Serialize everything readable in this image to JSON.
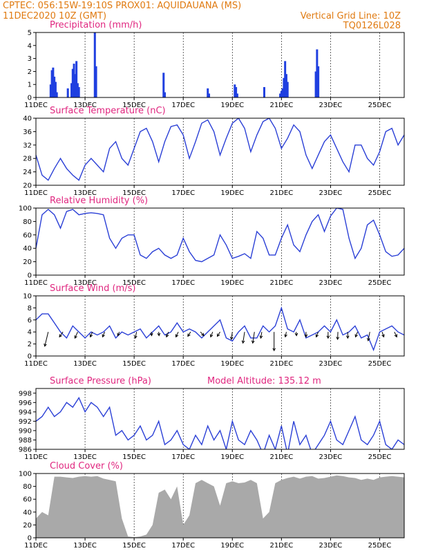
{
  "header": {
    "line1": "CPTEC:   056:15W-19:10S   PROX01: AQUIDAUANA (MS)",
    "line2_left": "11DEC2020 10Z (GMT)",
    "line2_right": "Vertical Grid Line: 10Z",
    "line3_right": "TQ0126L028"
  },
  "colors": {
    "header": "#e07a10",
    "panel_title": "#e0267f",
    "line": "#2a3fd6",
    "bar": "#1f3fe0",
    "cloud": "#a9a9a9",
    "arrow": "#000000"
  },
  "x_axis": {
    "ticks": [
      "11DEC",
      "13DEC",
      "15DEC",
      "17DEC",
      "19DEC",
      "21DEC",
      "23DEC",
      "25DEC"
    ],
    "range_days": [
      0,
      15
    ],
    "tick_every_days": 2
  },
  "chart_data": [
    {
      "id": "precip",
      "type": "bar",
      "title": "Precipitation (mm/h)",
      "ylim": [
        0,
        5
      ],
      "yticks": [
        0,
        1,
        2,
        3,
        4,
        5
      ],
      "bars": [
        [
          0.6,
          1.0
        ],
        [
          0.65,
          2.1
        ],
        [
          0.7,
          2.3
        ],
        [
          0.75,
          1.6
        ],
        [
          0.8,
          1.2
        ],
        [
          0.85,
          0.4
        ],
        [
          1.3,
          0.7
        ],
        [
          1.45,
          1.1
        ],
        [
          1.5,
          2.2
        ],
        [
          1.55,
          2.6
        ],
        [
          1.6,
          1.8
        ],
        [
          1.65,
          2.8
        ],
        [
          1.7,
          1.1
        ],
        [
          1.75,
          0.8
        ],
        [
          2.4,
          5.0
        ],
        [
          2.45,
          2.4
        ],
        [
          5.2,
          1.9
        ],
        [
          5.25,
          0.4
        ],
        [
          7.0,
          0.7
        ],
        [
          7.05,
          0.3
        ],
        [
          8.1,
          1.0
        ],
        [
          8.15,
          0.8
        ],
        [
          8.2,
          0.3
        ],
        [
          9.3,
          0.8
        ],
        [
          9.95,
          0.3
        ],
        [
          10.0,
          0.5
        ],
        [
          10.05,
          0.7
        ],
        [
          10.1,
          1.5
        ],
        [
          10.15,
          2.8
        ],
        [
          10.2,
          1.8
        ],
        [
          10.25,
          1.2
        ],
        [
          11.4,
          2.0
        ],
        [
          11.45,
          3.7
        ],
        [
          11.5,
          2.4
        ]
      ]
    },
    {
      "id": "temp",
      "type": "line",
      "title": "Surface Temperature (nC)",
      "ylim": [
        20,
        40
      ],
      "yticks": [
        20,
        24,
        28,
        32,
        36,
        40
      ],
      "x": [
        0,
        0.25,
        0.5,
        0.75,
        1,
        1.25,
        1.5,
        1.75,
        2,
        2.25,
        2.5,
        2.75,
        3,
        3.25,
        3.5,
        3.75,
        4,
        4.25,
        4.5,
        4.75,
        5,
        5.25,
        5.5,
        5.75,
        6,
        6.25,
        6.5,
        6.75,
        7,
        7.25,
        7.5,
        7.75,
        8,
        8.25,
        8.5,
        8.75,
        9,
        9.25,
        9.5,
        9.75,
        10,
        10.25,
        10.5,
        10.75,
        11,
        11.25,
        11.5,
        11.75,
        12,
        12.25,
        12.5,
        12.75,
        13,
        13.25,
        13.5,
        13.75,
        14,
        14.25,
        14.5,
        14.75,
        15
      ],
      "values": [
        29,
        23,
        21.5,
        25,
        28,
        25,
        23,
        21.5,
        26,
        28,
        26,
        24,
        31,
        33,
        28,
        26,
        31,
        36,
        37,
        33,
        27,
        33,
        37.5,
        38,
        35,
        28,
        33,
        38.5,
        39.5,
        36,
        29,
        34,
        38.5,
        40,
        37,
        30,
        35,
        39,
        40,
        37,
        31,
        34,
        38,
        36,
        29,
        25,
        29,
        33,
        35,
        31,
        27,
        24,
        32,
        32,
        28,
        26,
        30,
        36,
        37,
        32,
        35
      ]
    },
    {
      "id": "rh",
      "type": "line",
      "title": "Relative Humidity (%)",
      "ylim": [
        0,
        100
      ],
      "yticks": [
        0,
        20,
        40,
        60,
        80,
        100
      ],
      "x": [
        0,
        0.25,
        0.5,
        0.75,
        1,
        1.25,
        1.5,
        1.75,
        2,
        2.25,
        2.5,
        2.75,
        3,
        3.25,
        3.5,
        3.75,
        4,
        4.25,
        4.5,
        4.75,
        5,
        5.25,
        5.5,
        5.75,
        6,
        6.25,
        6.5,
        6.75,
        7,
        7.25,
        7.5,
        7.75,
        8,
        8.25,
        8.5,
        8.75,
        9,
        9.25,
        9.5,
        9.75,
        10,
        10.25,
        10.5,
        10.75,
        11,
        11.25,
        11.5,
        11.75,
        12,
        12.25,
        12.5,
        12.75,
        13,
        13.25,
        13.5,
        13.75,
        14,
        14.25,
        14.5,
        14.75,
        15
      ],
      "values": [
        40,
        90,
        98,
        90,
        70,
        95,
        98,
        90,
        92,
        93,
        92,
        90,
        55,
        40,
        55,
        60,
        60,
        30,
        25,
        35,
        40,
        30,
        25,
        30,
        55,
        35,
        22,
        20,
        25,
        30,
        60,
        45,
        25,
        28,
        32,
        25,
        65,
        55,
        30,
        30,
        55,
        75,
        45,
        35,
        60,
        80,
        90,
        65,
        88,
        100,
        98,
        55,
        25,
        40,
        75,
        82,
        60,
        35,
        28,
        30,
        40
      ]
    },
    {
      "id": "wind",
      "type": "line",
      "title": "Surface Wind (m/s)",
      "ylim": [
        0,
        10
      ],
      "yticks": [
        0,
        2,
        4,
        6,
        8,
        10
      ],
      "x": [
        0,
        0.25,
        0.5,
        0.75,
        1,
        1.25,
        1.5,
        1.75,
        2,
        2.25,
        2.5,
        2.75,
        3,
        3.25,
        3.5,
        3.75,
        4,
        4.25,
        4.5,
        4.75,
        5,
        5.25,
        5.5,
        5.75,
        6,
        6.25,
        6.5,
        6.75,
        7,
        7.25,
        7.5,
        7.75,
        8,
        8.25,
        8.5,
        8.75,
        9,
        9.25,
        9.5,
        9.75,
        10,
        10.25,
        10.5,
        10.75,
        11,
        11.25,
        11.5,
        11.75,
        12,
        12.25,
        12.5,
        12.75,
        13,
        13.25,
        13.5,
        13.75,
        14,
        14.25,
        14.5,
        14.75,
        15
      ],
      "values": [
        6,
        7,
        7,
        5.5,
        4,
        3,
        5,
        4,
        3,
        4,
        3.5,
        4,
        5,
        3,
        4,
        3.5,
        4,
        4.5,
        3,
        4,
        5,
        3.5,
        4,
        5.5,
        4,
        4.5,
        4,
        3,
        4,
        5,
        6,
        3,
        2.5,
        4,
        5,
        3,
        3,
        5,
        4,
        5,
        8,
        4.5,
        4,
        6,
        3,
        3.5,
        4,
        5,
        4,
        6,
        3.5,
        4,
        5,
        3,
        3.5,
        1,
        4,
        4.5,
        5,
        4,
        3.5
      ],
      "arrows": [
        [
          0.5,
          -1,
          -2.3
        ],
        [
          1.1,
          -1,
          -0.8
        ],
        [
          1.7,
          -0.8,
          -1.0
        ],
        [
          2.3,
          -0.6,
          -0.8
        ],
        [
          2.8,
          -0.6,
          -0.8
        ],
        [
          3.4,
          -0.5,
          -0.6
        ],
        [
          4.1,
          -0.4,
          -1.0
        ],
        [
          4.7,
          0.1,
          -0.6
        ],
        [
          5.0,
          0.1,
          -0.6
        ],
        [
          5.4,
          -0.6,
          -0.8
        ],
        [
          5.8,
          -0.7,
          -0.8
        ],
        [
          6.3,
          -0.8,
          -0.7
        ],
        [
          6.7,
          1.0,
          -0.6
        ],
        [
          7.2,
          -0.6,
          -0.8
        ],
        [
          7.5,
          -0.8,
          -0.7
        ],
        [
          8.0,
          -0.3,
          -1.2
        ],
        [
          8.5,
          -0.5,
          -1.8
        ],
        [
          8.9,
          -0.5,
          -1.8
        ],
        [
          9.2,
          -0.3,
          -1.0
        ],
        [
          9.7,
          0.0,
          -3.0
        ],
        [
          10.2,
          -0.3,
          -0.8
        ],
        [
          10.6,
          0.1,
          -0.6
        ],
        [
          11.0,
          0.0,
          -0.8
        ],
        [
          11.5,
          -0.6,
          -0.8
        ],
        [
          11.9,
          0.0,
          -1.0
        ],
        [
          12.3,
          -0.1,
          -1.2
        ],
        [
          12.7,
          0.0,
          -1.0
        ],
        [
          13.1,
          -0.6,
          -0.8
        ],
        [
          13.6,
          -0.5,
          -1.4
        ],
        [
          14.1,
          0.5,
          -0.8
        ],
        [
          14.6,
          0.7,
          -0.8
        ]
      ]
    },
    {
      "id": "pressure",
      "type": "line",
      "title": "Surface Pressure (hPa)",
      "annotation": "Model Altitude: 135.12 m",
      "ylim": [
        986,
        999
      ],
      "yticks": [
        986,
        988,
        990,
        992,
        994,
        996,
        998
      ],
      "x": [
        0,
        0.25,
        0.5,
        0.75,
        1,
        1.25,
        1.5,
        1.75,
        2,
        2.25,
        2.5,
        2.75,
        3,
        3.25,
        3.5,
        3.75,
        4,
        4.25,
        4.5,
        4.75,
        5,
        5.25,
        5.5,
        5.75,
        6,
        6.25,
        6.5,
        6.75,
        7,
        7.25,
        7.5,
        7.75,
        8,
        8.25,
        8.5,
        8.75,
        9,
        9.25,
        9.5,
        9.75,
        10,
        10.25,
        10.5,
        10.75,
        11,
        11.25,
        11.5,
        11.75,
        12,
        12.25,
        12.5,
        12.75,
        13,
        13.25,
        13.5,
        13.75,
        14,
        14.25,
        14.5,
        14.75,
        15
      ],
      "values": [
        992,
        993,
        995,
        993,
        994,
        996,
        995,
        997,
        994,
        996,
        995,
        993,
        995,
        989,
        990,
        988,
        989,
        991,
        988,
        989,
        992,
        987,
        988,
        990,
        987,
        986,
        989,
        987,
        991,
        988,
        990,
        986,
        992,
        988,
        987,
        990,
        988,
        985,
        989,
        986,
        991,
        985,
        992,
        987,
        989,
        985,
        987,
        989,
        992,
        988,
        987,
        990,
        993,
        988,
        987,
        989,
        992,
        987,
        986,
        988,
        987
      ]
    },
    {
      "id": "cloud",
      "type": "area",
      "title": "Cloud Cover (%)",
      "ylim": [
        0,
        100
      ],
      "yticks": [
        0,
        20,
        40,
        60,
        80,
        100
      ],
      "x": [
        0,
        0.25,
        0.5,
        0.75,
        1,
        1.25,
        1.5,
        1.75,
        2,
        2.25,
        2.5,
        2.75,
        3,
        3.25,
        3.5,
        3.75,
        4,
        4.25,
        4.5,
        4.75,
        5,
        5.25,
        5.5,
        5.75,
        6,
        6.25,
        6.5,
        6.75,
        7,
        7.25,
        7.5,
        7.75,
        8,
        8.25,
        8.5,
        8.75,
        9,
        9.25,
        9.5,
        9.75,
        10,
        10.25,
        10.5,
        10.75,
        11,
        11.25,
        11.5,
        11.75,
        12,
        12.25,
        12.5,
        12.75,
        13,
        13.25,
        13.5,
        13.75,
        14,
        14.25,
        14.5,
        14.75,
        15
      ],
      "values": [
        30,
        40,
        35,
        95,
        95,
        94,
        93,
        95,
        96,
        95,
        96,
        92,
        90,
        88,
        30,
        2,
        1,
        2,
        5,
        20,
        70,
        75,
        60,
        80,
        20,
        35,
        85,
        90,
        85,
        80,
        50,
        85,
        88,
        85,
        86,
        90,
        85,
        30,
        40,
        85,
        90,
        93,
        95,
        92,
        95,
        96,
        92,
        93,
        95,
        97,
        96,
        94,
        93,
        90,
        92,
        90,
        94,
        95,
        96,
        95,
        94
      ]
    }
  ]
}
